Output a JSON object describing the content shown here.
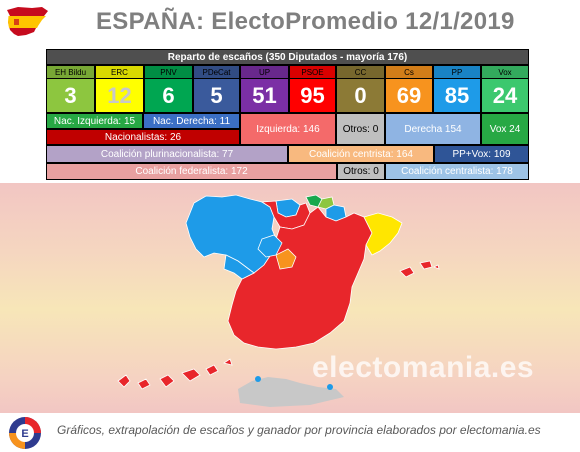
{
  "header": {
    "title": "ESPAÑA: ElectoPromedio 12/1/2019",
    "flag_icon": "spain-map-flag-icon"
  },
  "panel": {
    "heading": "Reparto de escaños (350 Diputados - mayoría 176)",
    "parties": [
      {
        "name": "EH Bildu",
        "seats": "3",
        "color": "#8dc63f",
        "text_color": "#ffffff"
      },
      {
        "name": "ERC",
        "seats": "12",
        "color": "#ffff00",
        "text_color": "#c8c8c8"
      },
      {
        "name": "PNV",
        "seats": "6",
        "color": "#00a651",
        "text_color": "#ffffff"
      },
      {
        "name": "PDeCat",
        "seats": "5",
        "color": "#3a5a9c",
        "text_color": "#ffffff"
      },
      {
        "name": "UP",
        "seats": "51",
        "color": "#7b2fa5",
        "text_color": "#ffffff"
      },
      {
        "name": "PSOE",
        "seats": "95",
        "color": "#ff0000",
        "text_color": "#ffffff"
      },
      {
        "name": "CC",
        "seats": "0",
        "color": "#8c7a36",
        "text_color": "#ffffff"
      },
      {
        "name": "Cs",
        "seats": "69",
        "color": "#f7931e",
        "text_color": "#ffffff"
      },
      {
        "name": "PP",
        "seats": "85",
        "color": "#1e9be8",
        "text_color": "#ffffff"
      },
      {
        "name": "Vox",
        "seats": "24",
        "color": "#3cc86e",
        "text_color": "#ffffff"
      }
    ],
    "row3": {
      "nac_izquierda": "Nac. Izquierda: 15",
      "nac_derecha": "Nac. Derecha: 11",
      "izquierda": "Izquierda: 146",
      "otros": "Otros: 0",
      "derecha": "Derecha 154",
      "vox": "Vox 24"
    },
    "row4": {
      "nacionalistas": "Nacionalistas: 26"
    },
    "row5": {
      "plurinacionalista": "Coalición plurinacionalista: 77",
      "centrista": "Coalición centrista: 164",
      "pp_vox": "PP+Vox: 109"
    },
    "row6": {
      "federalista": "Coalición federalista: 172",
      "otros": "Otros: 0",
      "centralista": "Coalición centralista: 178"
    },
    "colors": {
      "row_label_green": "#27a844",
      "row_label_blue": "#3b6fc4",
      "izquierda_red": "#f46a6a",
      "derecha_blue": "#8fb4e3",
      "vox_green": "#27a844",
      "nacionalistas_red": "#c00000",
      "plurinacionalista": "#b3a2c7",
      "centrista": "#f8b97f",
      "pp_vox": "#2f5597",
      "federalista": "#e8a0a0",
      "otros_grey": "#bfbfbf",
      "centralista": "#9dc3e6"
    }
  },
  "map": {
    "watermark": "electomania.es",
    "colors": {
      "psoe": "#e8262b",
      "pp": "#1e9be8",
      "cs": "#f7931e",
      "erc": "#ffe600",
      "pnv": "#19a84d",
      "bildu": "#8dc63f",
      "outside": "#c8c8c8"
    }
  },
  "footer": {
    "text": "Gráficos, extrapolación de escaños y ganador por provincia elaborados por electomania.es",
    "logo_icon": "electomania-logo-icon"
  }
}
